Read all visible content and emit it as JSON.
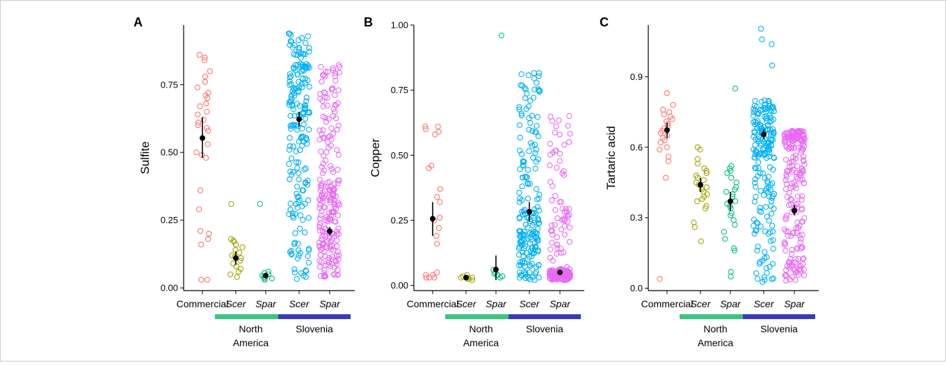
{
  "figure": {
    "border_color": "#cccccc",
    "panels_order": [
      "A",
      "B",
      "C"
    ]
  },
  "colors": {
    "commercial": "#F8766D",
    "na_scer": "#A3A500",
    "na_spar": "#00BF7D",
    "si_scer": "#00B0F6",
    "si_spar": "#E76BF3",
    "north_america_bar": "#3DC47F",
    "slovenia_bar": "#3A3AB8",
    "mean": "#000000"
  },
  "categories": [
    {
      "label": "Commercial",
      "italic": false
    },
    {
      "label": "Scer",
      "italic": true
    },
    {
      "label": "Spar",
      "italic": true
    },
    {
      "label": "Scer",
      "italic": true
    },
    {
      "label": "Spar",
      "italic": true
    }
  ],
  "groups": [
    {
      "label_line1": "North",
      "label_line2": "America"
    },
    {
      "label_line1": "Slovenia",
      "label_line2": ""
    }
  ],
  "chart_data": [
    {
      "type": "scatter",
      "panel": "A",
      "ylabel": "Sulfite",
      "ylim": [
        -0.01,
        0.97
      ],
      "yticks": [
        0.0,
        0.25,
        0.5,
        0.75
      ],
      "ytick_labels": [
        "0.00",
        "0.25",
        "0.50",
        "0.75"
      ],
      "series": [
        {
          "category": "Commercial",
          "mean": 0.553,
          "ci": [
            0.48,
            0.63
          ],
          "n": 36,
          "range": [
            0.03,
            0.86
          ],
          "points": [
            0.85,
            0.86,
            0.84,
            0.8,
            0.78,
            0.76,
            0.74,
            0.72,
            0.71,
            0.7,
            0.68,
            0.67,
            0.65,
            0.64,
            0.62,
            0.61,
            0.6,
            0.59,
            0.58,
            0.53,
            0.5,
            0.49,
            0.48,
            0.36,
            0.29,
            0.21,
            0.2,
            0.18,
            0.16,
            0.03,
            0.03
          ]
        },
        {
          "category": "Scer (North America)",
          "mean": 0.11,
          "ci": [
            0.085,
            0.135
          ],
          "n": 28,
          "range": [
            0.04,
            0.31
          ],
          "points": [
            0.31,
            0.18,
            0.175,
            0.17,
            0.16,
            0.15,
            0.14,
            0.13,
            0.12,
            0.115,
            0.11,
            0.1,
            0.09,
            0.08,
            0.07,
            0.06,
            0.05,
            0.04
          ]
        },
        {
          "category": "Spar (North America)",
          "mean": 0.045,
          "ci": [
            0.035,
            0.055
          ],
          "n": 28,
          "range": [
            0.03,
            0.31
          ],
          "points": [
            0.31,
            0.06,
            0.055,
            0.05,
            0.045,
            0.04,
            0.04,
            0.035,
            0.035,
            0.03
          ]
        },
        {
          "category": "Scer (Slovenia)",
          "mean": 0.622,
          "ci": [
            0.595,
            0.65
          ],
          "n": 200,
          "range": [
            0.03,
            0.94
          ],
          "dense_ranges": [
            [
              0.55,
              0.94
            ],
            [
              0.15,
              0.55
            ],
            [
              0.03,
              0.15
            ]
          ]
        },
        {
          "category": "Spar (Slovenia)",
          "mean": 0.209,
          "ci": [
            0.195,
            0.225
          ],
          "n": 250,
          "range": [
            0.04,
            0.83
          ],
          "dense_ranges": [
            [
              0.04,
              0.4
            ],
            [
              0.4,
              0.83
            ]
          ]
        }
      ]
    },
    {
      "type": "scatter",
      "panel": "B",
      "ylabel": "Copper",
      "ylim": [
        -0.02,
        1.0
      ],
      "yticks": [
        0.0,
        0.25,
        0.5,
        0.75,
        1.0
      ],
      "ytick_labels": [
        "0.00",
        "0.25",
        "0.50",
        "0.75",
        "1.00"
      ],
      "series": [
        {
          "category": "Commercial",
          "mean": 0.256,
          "ci": [
            0.19,
            0.32
          ],
          "n": 36,
          "range": [
            0.03,
            0.61
          ],
          "points": [
            0.61,
            0.61,
            0.6,
            0.59,
            0.58,
            0.46,
            0.45,
            0.37,
            0.34,
            0.32,
            0.26,
            0.25,
            0.22,
            0.19,
            0.16,
            0.05,
            0.04,
            0.04,
            0.03,
            0.03,
            0.03
          ]
        },
        {
          "category": "Scer (North America)",
          "mean": 0.03,
          "ci": [
            0.028,
            0.035
          ],
          "n": 28,
          "range": [
            0.02,
            0.04
          ],
          "points": [
            0.04,
            0.035,
            0.03,
            0.03,
            0.03,
            0.025,
            0.025,
            0.02
          ]
        },
        {
          "category": "Spar (North America)",
          "mean": 0.061,
          "ci": [
            0.02,
            0.115
          ],
          "n": 28,
          "range": [
            0.03,
            0.96
          ],
          "points": [
            0.96,
            0.06,
            0.05,
            0.045,
            0.04,
            0.04,
            0.035,
            0.03
          ]
        },
        {
          "category": "Scer (Slovenia)",
          "mean": 0.283,
          "ci": [
            0.245,
            0.32
          ],
          "n": 200,
          "range": [
            0.02,
            0.82
          ],
          "dense_ranges": [
            [
              0.02,
              0.3
            ],
            [
              0.3,
              0.7
            ],
            [
              0.7,
              0.82
            ]
          ]
        },
        {
          "category": "Spar (Slovenia)",
          "mean": 0.05,
          "ci": [
            0.042,
            0.058
          ],
          "n": 250,
          "range": [
            0.02,
            0.66
          ],
          "dense_ranges": [
            [
              0.02,
              0.06
            ],
            [
              0.06,
              0.66
            ]
          ]
        }
      ]
    },
    {
      "type": "scatter",
      "panel": "C",
      "ylabel": "Tartaric acid",
      "ylim": [
        -0.01,
        1.12
      ],
      "yticks": [
        0.0,
        0.3,
        0.6,
        0.9
      ],
      "ytick_labels": [
        "0.0",
        "0.3",
        "0.6",
        "0.9"
      ],
      "series": [
        {
          "category": "Commercial",
          "mean": 0.673,
          "ci": [
            0.64,
            0.705
          ],
          "n": 36,
          "range": [
            0.04,
            0.83
          ],
          "points": [
            0.83,
            0.78,
            0.76,
            0.75,
            0.74,
            0.73,
            0.72,
            0.71,
            0.7,
            0.69,
            0.68,
            0.67,
            0.66,
            0.65,
            0.64,
            0.63,
            0.62,
            0.6,
            0.59,
            0.56,
            0.54,
            0.47,
            0.04
          ]
        },
        {
          "category": "Scer (North America)",
          "mean": 0.44,
          "ci": [
            0.41,
            0.47
          ],
          "n": 28,
          "range": [
            0.2,
            0.6
          ],
          "points": [
            0.6,
            0.59,
            0.55,
            0.53,
            0.51,
            0.5,
            0.49,
            0.48,
            0.47,
            0.46,
            0.45,
            0.44,
            0.43,
            0.42,
            0.41,
            0.4,
            0.39,
            0.38,
            0.37,
            0.35,
            0.34,
            0.28,
            0.26,
            0.2
          ]
        },
        {
          "category": "Spar (North America)",
          "mean": 0.37,
          "ci": [
            0.33,
            0.41
          ],
          "n": 28,
          "range": [
            0.05,
            0.85
          ],
          "points": [
            0.85,
            0.52,
            0.51,
            0.5,
            0.49,
            0.47,
            0.45,
            0.43,
            0.42,
            0.41,
            0.4,
            0.39,
            0.37,
            0.36,
            0.35,
            0.34,
            0.32,
            0.31,
            0.29,
            0.27,
            0.24,
            0.21,
            0.17,
            0.16,
            0.07,
            0.05
          ]
        },
        {
          "category": "Scer (Slovenia)",
          "mean": 0.655,
          "ci": [
            0.635,
            0.675
          ],
          "n": 200,
          "range": [
            0.02,
            1.11
          ],
          "dense_ranges": [
            [
              0.55,
              0.8
            ],
            [
              0.2,
              0.55
            ],
            [
              0.02,
              0.2
            ],
            [
              0.8,
              1.11
            ]
          ]
        },
        {
          "category": "Spar (Slovenia)",
          "mean": 0.33,
          "ci": [
            0.31,
            0.355
          ],
          "n": 250,
          "range": [
            0.03,
            0.67
          ],
          "dense_ranges": [
            [
              0.03,
              0.62
            ],
            [
              0.62,
              0.67
            ]
          ]
        }
      ]
    }
  ]
}
